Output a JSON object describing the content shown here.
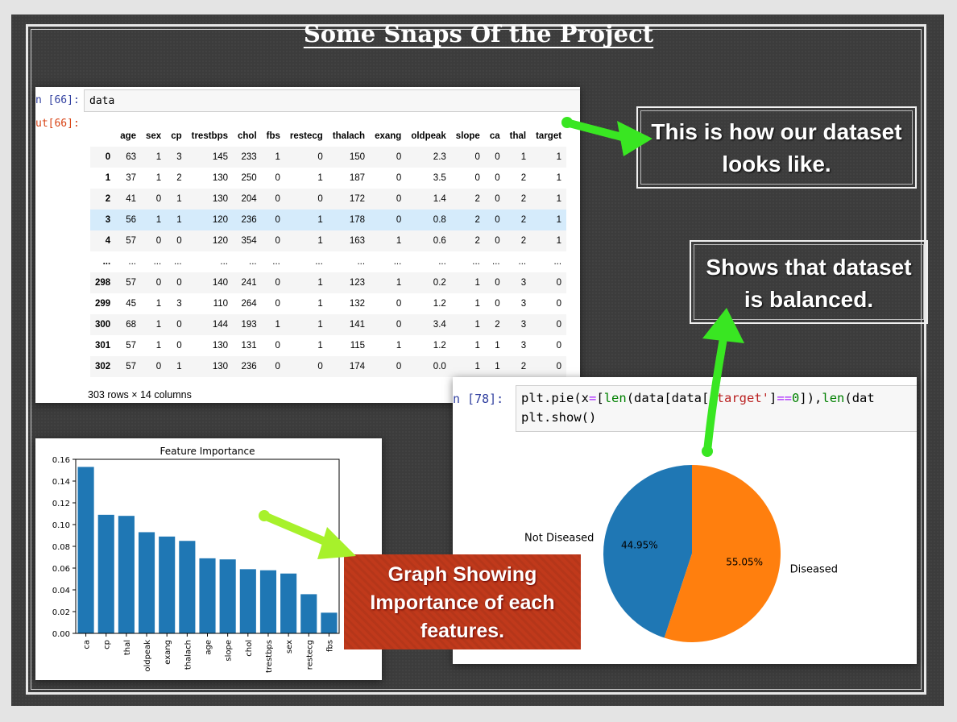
{
  "page_title": "Some Snaps Of the Project",
  "notebook_table": {
    "in_prompt": "n [66]:",
    "code": "data",
    "out_prompt": "ut[66]:",
    "columns": [
      "age",
      "sex",
      "cp",
      "trestbps",
      "chol",
      "fbs",
      "restecg",
      "thalach",
      "exang",
      "oldpeak",
      "slope",
      "ca",
      "thal",
      "target"
    ],
    "rows": [
      [
        "0",
        "63",
        "1",
        "3",
        "145",
        "233",
        "1",
        "0",
        "150",
        "0",
        "2.3",
        "0",
        "0",
        "1",
        "1"
      ],
      [
        "1",
        "37",
        "1",
        "2",
        "130",
        "250",
        "0",
        "1",
        "187",
        "0",
        "3.5",
        "0",
        "0",
        "2",
        "1"
      ],
      [
        "2",
        "41",
        "0",
        "1",
        "130",
        "204",
        "0",
        "0",
        "172",
        "0",
        "1.4",
        "2",
        "0",
        "2",
        "1"
      ],
      [
        "3",
        "56",
        "1",
        "1",
        "120",
        "236",
        "0",
        "1",
        "178",
        "0",
        "0.8",
        "2",
        "0",
        "2",
        "1"
      ],
      [
        "4",
        "57",
        "0",
        "0",
        "120",
        "354",
        "0",
        "1",
        "163",
        "1",
        "0.6",
        "2",
        "0",
        "2",
        "1"
      ],
      [
        "...",
        "...",
        "...",
        "...",
        "...",
        "...",
        "...",
        "...",
        "...",
        "...",
        "...",
        "...",
        "...",
        "...",
        "..."
      ],
      [
        "298",
        "57",
        "0",
        "0",
        "140",
        "241",
        "0",
        "1",
        "123",
        "1",
        "0.2",
        "1",
        "0",
        "3",
        "0"
      ],
      [
        "299",
        "45",
        "1",
        "3",
        "110",
        "264",
        "0",
        "1",
        "132",
        "0",
        "1.2",
        "1",
        "0",
        "3",
        "0"
      ],
      [
        "300",
        "68",
        "1",
        "0",
        "144",
        "193",
        "1",
        "1",
        "141",
        "0",
        "3.4",
        "1",
        "2",
        "3",
        "0"
      ],
      [
        "301",
        "57",
        "1",
        "0",
        "130",
        "131",
        "0",
        "1",
        "115",
        "1",
        "1.2",
        "1",
        "1",
        "3",
        "0"
      ],
      [
        "302",
        "57",
        "0",
        "1",
        "130",
        "236",
        "0",
        "0",
        "174",
        "0",
        "0.0",
        "1",
        "1",
        "2",
        "0"
      ]
    ],
    "highlighted_row": "3",
    "summary": "303 rows × 14 columns"
  },
  "annotations": {
    "dataset": [
      "This is how our dataset",
      "looks like."
    ],
    "balanced": [
      "Shows that dataset",
      "is balanced."
    ],
    "graph": [
      "Graph Showing",
      "Importance of each",
      "features."
    ]
  },
  "pie_cell": {
    "in_prompt": "n [78]:",
    "code_line1_parts": [
      "plt.pie(x",
      "=",
      "[",
      "len",
      "(data[data[",
      "'target'",
      "]",
      "==",
      "0",
      "]),",
      "len",
      "(dat"
    ],
    "code_line2": "plt.show()"
  },
  "chart_data": [
    {
      "type": "bar",
      "title": "Feature Importance",
      "categories": [
        "ca",
        "cp",
        "thal",
        "oldpeak",
        "exang",
        "thalach",
        "age",
        "slope",
        "chol",
        "trestbps",
        "sex",
        "restecg",
        "fbs"
      ],
      "values": [
        0.153,
        0.109,
        0.108,
        0.093,
        0.089,
        0.085,
        0.069,
        0.068,
        0.059,
        0.058,
        0.055,
        0.036,
        0.019
      ],
      "ylim": [
        0,
        0.16
      ],
      "yticks": [
        "0.00",
        "0.02",
        "0.04",
        "0.06",
        "0.08",
        "0.10",
        "0.12",
        "0.14",
        "0.16"
      ],
      "color": "#1f77b4"
    },
    {
      "type": "pie",
      "labels": [
        "Not Diseased",
        "Diseased"
      ],
      "values": [
        44.95,
        55.05
      ],
      "pct_labels": [
        "44.95%",
        "55.05%"
      ],
      "colors": [
        "#1f77b4",
        "#ff7f0e"
      ]
    }
  ],
  "colors": {
    "board": "#3c3c3c",
    "arrow_green": "#39e622",
    "arrow_yellowgreen": "#a7f12b",
    "annot_red": "#c0391b"
  }
}
